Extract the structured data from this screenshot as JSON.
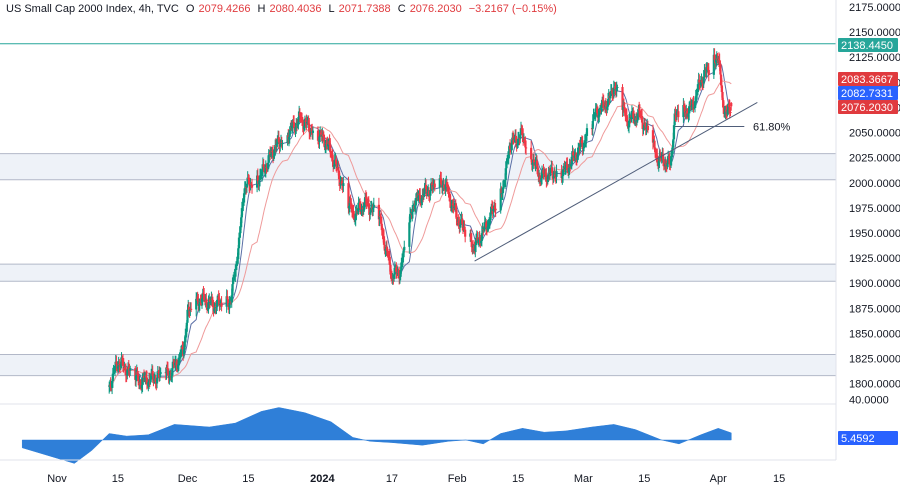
{
  "header": {
    "title": "US Small Cap 2000 Index, 4h, TVC",
    "open_label": "O",
    "open": "2079.4266",
    "high_label": "H",
    "high": "2080.4036",
    "low_label": "L",
    "low": "2071.7388",
    "close_label": "C",
    "close": "2076.2030",
    "change": "−3.2167 (−0.15%)"
  },
  "colors": {
    "up": "#089981",
    "down": "#f23645",
    "ma_fast": "#5b6fa6",
    "ma_slow": "#ef9a9a",
    "zone_fill": "#eef2f8",
    "zone_line": "#b2b8c8",
    "trendline": "#4f5d79",
    "resistance": "#26a69a",
    "osc_fill": "#2f7fd8",
    "badge_resistance": "#26a69a",
    "badge_red": "#e03a3e",
    "badge_blue": "#2962ff"
  },
  "chart_data": {
    "type": "candlestick",
    "price_axis": {
      "ticks": [
        "2175.0000",
        "2150.0000",
        "2125.0000",
        "2100.0000",
        "2075.0000",
        "2050.0000",
        "2025.0000",
        "2000.0000",
        "1975.0000",
        "1950.0000",
        "1925.0000",
        "1900.0000",
        "1875.0000",
        "1850.0000",
        "1825.0000",
        "1800.0000"
      ],
      "range": [
        1790,
        2180
      ]
    },
    "oscillator_axis": {
      "ticks": [
        "40.0000"
      ],
      "range": [
        -25,
        50
      ]
    },
    "time_axis": {
      "ticks": [
        "Nov",
        "15",
        "Dec",
        "15",
        "2024",
        "17",
        "Feb",
        "15",
        "Mar",
        "15",
        "Apr",
        "15"
      ]
    },
    "badges": {
      "resistance": "2138.4450",
      "red_top": "2083.3667",
      "blue": "2082.7331",
      "red_bottom": "2076.2030",
      "oscillator": "5.4592"
    },
    "fib_label": "61.80%",
    "resistance_level": 2138.445,
    "fib_level": 2056,
    "zones": [
      [
        2003,
        2029
      ],
      [
        1902,
        1919
      ],
      [
        1808,
        1829
      ]
    ],
    "trendline": {
      "from": [
        "2024-02-05",
        1922
      ],
      "to": [
        "2024-04-10",
        2080
      ]
    },
    "anchors": [
      [
        "2023-11-13",
        1797
      ],
      [
        "2023-11-15",
        1822
      ],
      [
        "2023-11-20",
        1802
      ],
      [
        "2023-11-27",
        1810
      ],
      [
        "2023-11-30",
        1832
      ],
      [
        "2023-12-01",
        1869
      ],
      [
        "2023-12-04",
        1885
      ],
      [
        "2023-12-07",
        1878
      ],
      [
        "2023-12-11",
        1883
      ],
      [
        "2023-12-13",
        1946
      ],
      [
        "2023-12-14",
        1995
      ],
      [
        "2023-12-18",
        2008
      ],
      [
        "2023-12-21",
        2035
      ],
      [
        "2023-12-27",
        2064
      ],
      [
        "2023-12-28",
        2059
      ],
      [
        "2024-01-02",
        2040
      ],
      [
        "2024-01-04",
        2018
      ],
      [
        "2024-01-08",
        1968
      ],
      [
        "2024-01-11",
        1980
      ],
      [
        "2024-01-14",
        1966
      ],
      [
        "2024-01-17",
        1907
      ],
      [
        "2024-01-19",
        1913
      ],
      [
        "2024-01-22",
        1980
      ],
      [
        "2024-01-25",
        1992
      ],
      [
        "2024-01-29",
        2000
      ],
      [
        "2024-02-01",
        1965
      ],
      [
        "2024-02-05",
        1936
      ],
      [
        "2024-02-08",
        1960
      ],
      [
        "2024-02-12",
        2003
      ],
      [
        "2024-02-13",
        2038
      ],
      [
        "2024-02-16",
        2048
      ],
      [
        "2024-02-20",
        2006
      ],
      [
        "2024-02-26",
        2013
      ],
      [
        "2024-03-01",
        2040
      ],
      [
        "2024-03-04",
        2070
      ],
      [
        "2024-03-07",
        2082
      ],
      [
        "2024-03-08",
        2098
      ],
      [
        "2024-03-11",
        2062
      ],
      [
        "2024-03-14",
        2068
      ],
      [
        "2024-03-18",
        2025
      ],
      [
        "2024-03-21",
        2018
      ],
      [
        "2024-03-22",
        2065
      ],
      [
        "2024-03-26",
        2075
      ],
      [
        "2024-03-28",
        2102
      ],
      [
        "2024-04-01",
        2128
      ],
      [
        "2024-04-02",
        2080
      ],
      [
        "2024-04-03",
        2068
      ],
      [
        "2024-04-04",
        2076
      ]
    ],
    "oscillator_shape": [
      [
        "2023-10-24",
        -6
      ],
      [
        "2023-11-01",
        -14
      ],
      [
        "2023-11-05",
        -18
      ],
      [
        "2023-11-09",
        -8
      ],
      [
        "2023-11-13",
        5
      ],
      [
        "2023-11-17",
        3
      ],
      [
        "2023-11-22",
        4
      ],
      [
        "2023-11-28",
        12
      ],
      [
        "2023-12-06",
        10
      ],
      [
        "2023-12-12",
        13
      ],
      [
        "2023-12-18",
        22
      ],
      [
        "2023-12-22",
        25
      ],
      [
        "2023-12-28",
        21
      ],
      [
        "2024-01-03",
        14
      ],
      [
        "2024-01-08",
        2
      ],
      [
        "2024-01-12",
        -1
      ],
      [
        "2024-01-17",
        -2
      ],
      [
        "2024-01-24",
        -4
      ],
      [
        "2024-01-30",
        -1
      ],
      [
        "2024-02-03",
        0
      ],
      [
        "2024-02-07",
        -3
      ],
      [
        "2024-02-11",
        5
      ],
      [
        "2024-02-16",
        9
      ],
      [
        "2024-02-21",
        6
      ],
      [
        "2024-02-26",
        7
      ],
      [
        "2024-03-03",
        10
      ],
      [
        "2024-03-08",
        12
      ],
      [
        "2024-03-13",
        8
      ],
      [
        "2024-03-19",
        0
      ],
      [
        "2024-03-23",
        -3
      ],
      [
        "2024-03-28",
        4
      ],
      [
        "2024-04-01",
        9
      ],
      [
        "2024-04-04",
        5.4592
      ]
    ]
  }
}
